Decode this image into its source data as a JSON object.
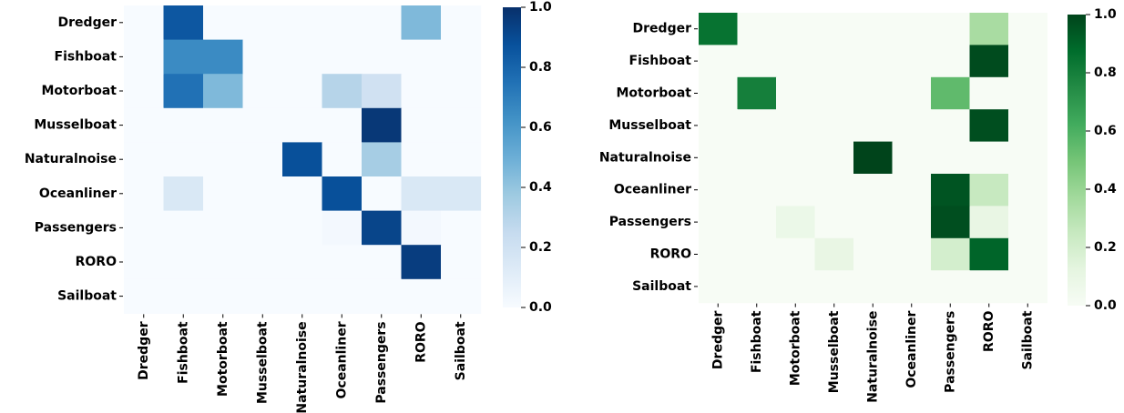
{
  "chart_data": [
    {
      "type": "heatmap",
      "name": "left-heatmap",
      "colormap": "Blues",
      "rows": [
        "Dredger",
        "Fishboat",
        "Motorboat",
        "Musselboat",
        "Naturalnoise",
        "Oceanliner",
        "Passengers",
        "RORO",
        "Sailboat"
      ],
      "columns": [
        "Dredger",
        "Fishboat",
        "Motorboat",
        "Musselboat",
        "Naturalnoise",
        "Oceanliner",
        "Passengers",
        "RORO",
        "Sailboat"
      ],
      "values": [
        [
          0,
          0.85,
          0,
          0,
          0,
          0,
          0,
          0.45,
          0
        ],
        [
          0,
          0.65,
          0.65,
          0,
          0,
          0,
          0,
          0,
          0
        ],
        [
          0,
          0.75,
          0.45,
          0,
          0,
          0.3,
          0.2,
          0,
          0
        ],
        [
          0,
          0,
          0,
          0,
          0,
          0,
          0.97,
          0,
          0
        ],
        [
          0,
          0,
          0,
          0,
          0.88,
          0,
          0.35,
          0,
          0
        ],
        [
          0,
          0.15,
          0,
          0,
          0,
          0.88,
          0,
          0.15,
          0.15
        ],
        [
          0,
          0,
          0,
          0,
          0,
          0.02,
          0.92,
          0.02,
          0
        ],
        [
          0,
          0,
          0,
          0,
          0,
          0,
          0,
          0.95,
          0
        ],
        [
          0,
          0,
          0,
          0,
          0,
          0,
          0,
          0,
          0
        ]
      ],
      "colorbar": {
        "min": 0,
        "max": 1,
        "ticks": [
          "0.0",
          "0.2",
          "0.4",
          "0.6",
          "0.8",
          "1.0"
        ]
      }
    },
    {
      "type": "heatmap",
      "name": "right-heatmap",
      "colormap": "Greens",
      "rows": [
        "Dredger",
        "Fishboat",
        "Motorboat",
        "Musselboat",
        "Naturalnoise",
        "Oceanliner",
        "Passengers",
        "RORO",
        "Sailboat"
      ],
      "columns": [
        "Dredger",
        "Fishboat",
        "Motorboat",
        "Musselboat",
        "Naturalnoise",
        "Oceanliner",
        "Passengers",
        "RORO",
        "Sailboat"
      ],
      "values": [
        [
          0.85,
          0,
          0,
          0,
          0,
          0,
          0,
          0.35,
          0
        ],
        [
          0,
          0,
          0,
          0,
          0,
          0,
          0,
          0.98,
          0
        ],
        [
          0,
          0.8,
          0,
          0,
          0,
          0,
          0.55,
          0,
          0
        ],
        [
          0,
          0,
          0,
          0,
          0,
          0,
          0,
          0.97,
          0
        ],
        [
          0,
          0,
          0,
          0,
          1.0,
          0,
          0,
          0,
          0
        ],
        [
          0,
          0,
          0,
          0,
          0,
          0,
          0.95,
          0.25,
          0
        ],
        [
          0,
          0,
          0.08,
          0,
          0,
          0,
          0.97,
          0.1,
          0
        ],
        [
          0,
          0,
          0,
          0.1,
          0,
          0,
          0.2,
          0.9,
          0
        ],
        [
          0,
          0,
          0,
          0,
          0,
          0,
          0,
          0,
          0
        ]
      ],
      "colorbar": {
        "min": 0,
        "max": 1,
        "ticks": [
          "0.0",
          "0.2",
          "0.4",
          "0.6",
          "0.8",
          "1.0"
        ]
      }
    }
  ]
}
